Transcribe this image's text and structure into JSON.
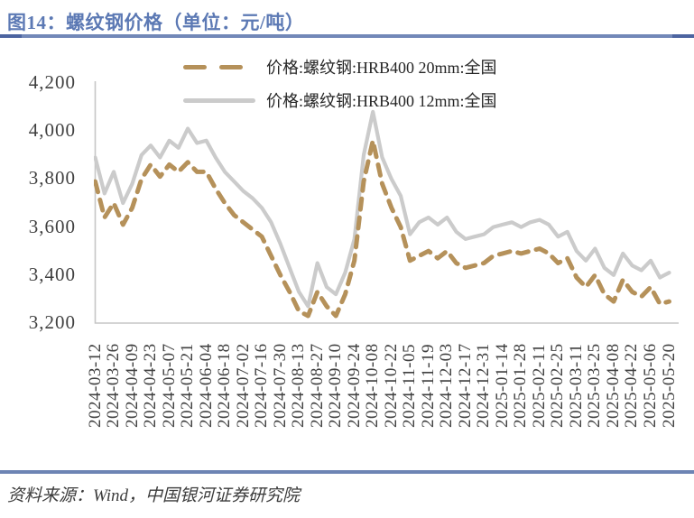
{
  "figure": {
    "title": "图14：螺纹钢价格（单位：元/吨）",
    "source": "资料来源：Wind，中国银河证券研究院"
  },
  "colors": {
    "title_blue": "#5c79b4",
    "divider_blue": "#6d84b4",
    "divider_cap_blue": "#4c64a0",
    "series_20mm_tan": "#b5915a",
    "series_12mm_gray": "#cbcbcb",
    "axis_gray": "#c6c6c6",
    "label_gray": "#404040"
  },
  "chart_data": {
    "type": "line",
    "title": "螺纹钢价格",
    "unit": "元/吨",
    "grid": false,
    "legend_position": "top-center",
    "ylim": [
      3200,
      4200
    ],
    "yticks": [
      {
        "value": 4200,
        "label": "4,200"
      },
      {
        "value": 4000,
        "label": "4,000"
      },
      {
        "value": 3800,
        "label": "3,800"
      },
      {
        "value": 3600,
        "label": "3,600"
      },
      {
        "value": 3400,
        "label": "3,400"
      },
      {
        "value": 3200,
        "label": "3,200"
      }
    ],
    "xticks": [
      "2024-03-12",
      "2024-03-26",
      "2024-04-09",
      "2024-04-23",
      "2024-05-07",
      "2024-05-21",
      "2024-06-04",
      "2024-06-18",
      "2024-07-02",
      "2024-07-16",
      "2024-07-30",
      "2024-08-13",
      "2024-08-27",
      "2024-09-10",
      "2024-09-24",
      "2024-10-08",
      "2024-10-22",
      "2024-11-05",
      "2024-11-19",
      "2024-12-03",
      "2024-12-17",
      "2024-12-31",
      "2025-01-14",
      "2025-01-28",
      "2025-02-11",
      "2025-02-25",
      "2025-03-11",
      "2025-03-25",
      "2025-04-08",
      "2025-04-22",
      "2025-05-06",
      "2025-05-20"
    ],
    "x_start": "2024-03-12",
    "x_end": "2025-05-20",
    "x_step_days": 7,
    "series": [
      {
        "name": "价格:螺纹钢:HRB400 20mm:全国",
        "style": "dashed",
        "color": "#b5915a",
        "values": [
          3790,
          3640,
          3700,
          3610,
          3680,
          3800,
          3860,
          3810,
          3860,
          3830,
          3870,
          3830,
          3830,
          3760,
          3700,
          3650,
          3620,
          3590,
          3560,
          3480,
          3400,
          3330,
          3250,
          3230,
          3330,
          3270,
          3230,
          3320,
          3460,
          3790,
          3960,
          3780,
          3680,
          3600,
          3460,
          3480,
          3500,
          3470,
          3500,
          3450,
          3430,
          3440,
          3450,
          3480,
          3490,
          3500,
          3490,
          3500,
          3510,
          3490,
          3450,
          3470,
          3390,
          3350,
          3400,
          3320,
          3290,
          3380,
          3330,
          3310,
          3350,
          3280,
          3290
        ]
      },
      {
        "name": "价格:螺纹钢:HRB400 12mm:全国",
        "style": "solid",
        "color": "#cbcbcb",
        "values": [
          3890,
          3740,
          3830,
          3700,
          3780,
          3900,
          3940,
          3890,
          3960,
          3930,
          4010,
          3950,
          3960,
          3890,
          3830,
          3790,
          3750,
          3720,
          3680,
          3620,
          3530,
          3430,
          3330,
          3270,
          3450,
          3350,
          3320,
          3410,
          3550,
          3900,
          4080,
          3890,
          3800,
          3730,
          3570,
          3620,
          3640,
          3610,
          3640,
          3580,
          3550,
          3560,
          3570,
          3600,
          3610,
          3620,
          3600,
          3620,
          3630,
          3610,
          3560,
          3580,
          3500,
          3460,
          3510,
          3430,
          3400,
          3490,
          3440,
          3420,
          3460,
          3390,
          3410
        ]
      }
    ]
  }
}
